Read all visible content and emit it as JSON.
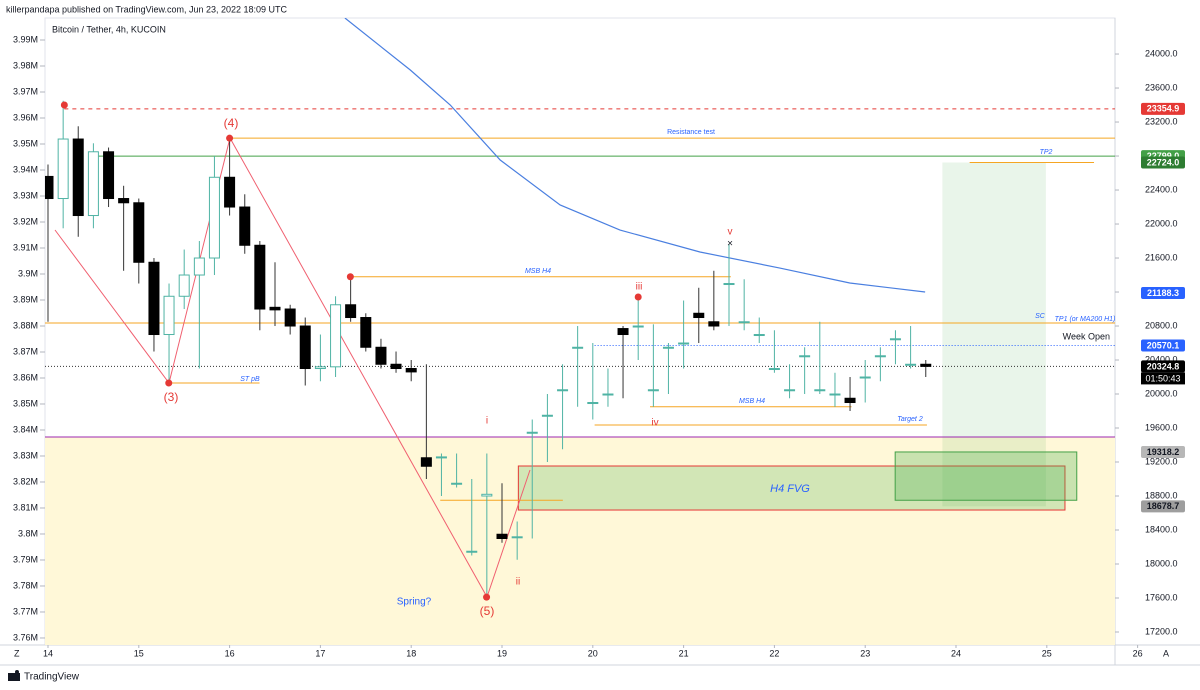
{
  "chart_data": {
    "type": "candlestick",
    "header": "killerpandapa published on TradingView.com, Jun 23, 2022 18:09 UTC",
    "title": "Bitcoin / Tether, 4h, KUCOIN",
    "footer": "TradingView",
    "countdown": "01:50:43",
    "scale_buttons": [
      "Z",
      "A"
    ],
    "bull_color": "#4fb3a4",
    "bear_color": "#000000",
    "x": [
      14,
      14.167,
      14.333,
      14.5,
      14.667,
      14.833,
      15,
      15.167,
      15.333,
      15.5,
      15.667,
      15.833,
      16,
      16.167,
      16.333,
      16.5,
      16.667,
      16.833,
      17,
      17.167,
      17.333,
      17.5,
      17.667,
      17.833,
      18,
      18.167,
      18.333,
      18.5,
      18.667,
      18.833,
      19,
      19.167,
      19.333,
      19.5,
      19.667,
      19.833,
      20,
      20.167,
      20.333,
      20.5,
      20.667,
      20.833,
      21,
      21.167,
      21.333,
      21.5,
      21.667,
      21.833,
      22,
      22.167,
      22.333,
      22.5,
      22.667,
      22.833,
      23,
      23.167,
      23.333,
      23.5,
      23.667
    ],
    "open": [
      22560,
      22300,
      23000,
      22100,
      22850,
      22300,
      22250,
      21550,
      20700,
      21150,
      21400,
      21600,
      22550,
      22200,
      21750,
      21020,
      21000,
      20800,
      20300,
      20320,
      21050,
      20900,
      20550,
      20350,
      20300,
      19250,
      19250,
      18950,
      18150,
      18800,
      18350,
      18320,
      19550,
      19750,
      20050,
      20550,
      19900,
      20000,
      20770,
      20800,
      20050,
      20550,
      20600,
      20950,
      20850,
      21300,
      20850,
      20700,
      20300,
      20050,
      20450,
      20050,
      20000,
      19950,
      20200,
      20450,
      20650,
      20350,
      20350
    ],
    "high": [
      22700,
      23450,
      23150,
      22950,
      22900,
      22450,
      22300,
      21600,
      21300,
      21700,
      21800,
      22800,
      23010,
      22350,
      21800,
      21550,
      21050,
      20900,
      20700,
      21150,
      21380,
      20950,
      20650,
      20500,
      20400,
      20350,
      19300,
      19300,
      19000,
      19300,
      18950,
      18500,
      19700,
      20000,
      20350,
      20800,
      20600,
      20300,
      20800,
      21150,
      20820,
      20600,
      21100,
      21250,
      21450,
      21765,
      21350,
      20900,
      20750,
      20350,
      20550,
      20850,
      20250,
      20200,
      20400,
      20550,
      20750,
      20800,
      20400
    ],
    "low": [
      20850,
      21950,
      21850,
      21950,
      22200,
      21450,
      21300,
      20500,
      20130,
      21000,
      20300,
      21400,
      22100,
      21650,
      20750,
      20800,
      20700,
      20100,
      20150,
      20200,
      20850,
      20500,
      20300,
      20250,
      20150,
      19000,
      18800,
      18900,
      18100,
      17620,
      18250,
      18050,
      18300,
      19200,
      19350,
      19850,
      19700,
      19850,
      19950,
      20400,
      19850,
      20000,
      20300,
      20600,
      20750,
      20800,
      20750,
      20600,
      20250,
      19950,
      20000,
      20000,
      19850,
      19800,
      19900,
      20150,
      20350,
      20300,
      20200
    ],
    "close": [
      22300,
      23000,
      22100,
      22850,
      22300,
      22250,
      21550,
      20700,
      21150,
      21400,
      21600,
      22550,
      22200,
      21750,
      21000,
      20990,
      20800,
      20300,
      20320,
      21050,
      20900,
      20550,
      20350,
      20300,
      20260,
      19150,
      19260,
      18950,
      18150,
      18820,
      18300,
      18320,
      19550,
      19750,
      20050,
      20550,
      19900,
      20000,
      20700,
      20800,
      20050,
      20550,
      20600,
      20900,
      20800,
      21300,
      20850,
      20700,
      20300,
      20050,
      20450,
      20050,
      20000,
      19900,
      20200,
      20450,
      20650,
      20350,
      20325
    ],
    "ma": {
      "color": "#4a7fe0",
      "x": [
        17.27,
        17.99,
        18.43,
        18.98,
        19.64,
        20.3,
        21.18,
        22.06,
        22.83,
        23.66
      ],
      "values": [
        24424,
        23812,
        23400,
        22753,
        22224,
        21929,
        21671,
        21482,
        21306,
        21200
      ]
    },
    "xlim": [
      13.967,
      25.751
    ],
    "xticks": [
      14,
      15,
      16,
      17,
      18,
      19,
      20,
      21,
      22,
      23,
      24,
      25,
      26
    ],
    "ylim": [
      17047,
      24424
    ],
    "yticks": [
      {
        "value": 17200,
        "label": "17200.0"
      },
      {
        "value": 17600,
        "label": "17600.0"
      },
      {
        "value": 18000,
        "label": "18000.0"
      },
      {
        "value": 18400,
        "label": "18400.0"
      },
      {
        "value": 18800,
        "label": "18800.0"
      },
      {
        "value": 19200,
        "label": "19200.0"
      },
      {
        "value": 19600,
        "label": "19600.0"
      },
      {
        "value": 20000,
        "label": "20000.0"
      },
      {
        "value": 20400,
        "label": "20400.0"
      },
      {
        "value": 20800,
        "label": "20800.0"
      },
      {
        "value": 21200,
        "label": "21200.0"
      },
      {
        "value": 21600,
        "label": "21600.0"
      },
      {
        "value": 22000,
        "label": "22000.0"
      },
      {
        "value": 22400,
        "label": "22400.0"
      },
      {
        "value": 22800,
        "label": "22800.0"
      },
      {
        "value": 23200,
        "label": "23200.0"
      },
      {
        "value": 23600,
        "label": "23600.0"
      },
      {
        "value": 24000,
        "label": "24000.0"
      }
    ],
    "y2lim": [
      3757300,
      3998460
    ],
    "y2ticks": [
      {
        "value": 3760000,
        "label": "3.76M"
      },
      {
        "value": 3770000,
        "label": "3.77M"
      },
      {
        "value": 3780000,
        "label": "3.78M"
      },
      {
        "value": 3790000,
        "label": "3.79M"
      },
      {
        "value": 3800000,
        "label": "3.8M"
      },
      {
        "value": 3810000,
        "label": "3.81M"
      },
      {
        "value": 3820000,
        "label": "3.82M"
      },
      {
        "value": 3830000,
        "label": "3.83M"
      },
      {
        "value": 3840000,
        "label": "3.84M"
      },
      {
        "value": 3850000,
        "label": "3.85M"
      },
      {
        "value": 3860000,
        "label": "3.86M"
      },
      {
        "value": 3870000,
        "label": "3.87M"
      },
      {
        "value": 3880000,
        "label": "3.88M"
      },
      {
        "value": 3890000,
        "label": "3.89M"
      },
      {
        "value": 3900000,
        "label": "3.9M"
      },
      {
        "value": 3910000,
        "label": "3.91M"
      },
      {
        "value": 3920000,
        "label": "3.92M"
      },
      {
        "value": 3930000,
        "label": "3.93M"
      },
      {
        "value": 3940000,
        "label": "3.94M"
      },
      {
        "value": 3950000,
        "label": "3.95M"
      },
      {
        "value": 3960000,
        "label": "3.96M"
      },
      {
        "value": 3970000,
        "label": "3.97M"
      },
      {
        "value": 3980000,
        "label": "3.98M"
      },
      {
        "value": 3990000,
        "label": "3.99M"
      }
    ],
    "price_labels": [
      {
        "value": 23354.9,
        "label": "23354.9",
        "bg": "#e53935",
        "fg": "#ffffff"
      },
      {
        "value": 22799,
        "label": "22799.0",
        "bg": "#43a047",
        "fg": "#ffffff"
      },
      {
        "value": 22724,
        "label": "22724.0",
        "bg": "#2e7d32",
        "fg": "#ffffff"
      },
      {
        "value": 21188.3,
        "label": "21188.3",
        "bg": "#2962ff",
        "fg": "#ffffff"
      },
      {
        "value": 20570.1,
        "label": "20570.1",
        "bg": "#2962ff",
        "fg": "#ffffff"
      },
      {
        "value": 20324.8,
        "label": "20324.8",
        "bg": "#000000",
        "fg": "#ffffff"
      },
      {
        "value": 19318.2,
        "label": "19318.2",
        "bg": "#b7b7b7",
        "fg": "#131722"
      },
      {
        "value": 18678.7,
        "label": "18678.7",
        "bg": "#9e9e9e",
        "fg": "#131722"
      }
    ],
    "boxes": [
      {
        "top": 19494,
        "bottom": 17047,
        "from": 13.967,
        "to": 25.751,
        "fill": "#fff8d8",
        "stroke": "none"
      },
      {
        "top": 22724,
        "bottom": 18678.7,
        "from": 23.85,
        "to": 24.99,
        "fill": "rgba(76,175,80,0.12)",
        "stroke": "none"
      },
      {
        "top": 19153,
        "bottom": 18635,
        "from": 19.18,
        "to": 25.2,
        "fill": "rgba(76,175,80,0.25)",
        "stroke": "#e53935"
      },
      {
        "top": 19318.2,
        "bottom": 18750,
        "from": 23.33,
        "to": 25.33,
        "fill": "rgba(76,175,80,0.3)",
        "stroke": "#43a047"
      }
    ],
    "levels": [
      {
        "value": 23354.9,
        "color": "#e53935",
        "dash": "4 4",
        "from": 14.18,
        "to": 25.751
      },
      {
        "value": 23010,
        "color": "#f5a623",
        "dash": "",
        "from": 16,
        "to": 25.751
      },
      {
        "value": 22799,
        "color": "#43a047",
        "dash": "",
        "from": 14.52,
        "to": 25.751
      },
      {
        "value": 22724,
        "color": "#f5a623",
        "dash": "",
        "from": 24.15,
        "to": 25.52
      },
      {
        "value": 21380,
        "color": "#f5a623",
        "dash": "",
        "from": 17.33,
        "to": 21.52
      },
      {
        "value": 20835,
        "color": "#f5a623",
        "dash": "",
        "from": 13.967,
        "to": 25.751
      },
      {
        "value": 20570.1,
        "color": "#2962ff",
        "dash": "1 2",
        "from": 20.02,
        "to": 25.751
      },
      {
        "value": 20324.8,
        "color": "#333333",
        "dash": "1 2",
        "from": 13.967,
        "to": 25.751
      },
      {
        "value": 20130,
        "color": "#f5a623",
        "dash": "",
        "from": 15.34,
        "to": 16.33
      },
      {
        "value": 19850,
        "color": "#f5a623",
        "dash": "",
        "from": 20.63,
        "to": 22.85
      },
      {
        "value": 19635,
        "color": "#f5a623",
        "dash": "",
        "from": 20.02,
        "to": 23.68
      },
      {
        "value": 19494,
        "color": "#9c27b0",
        "dash": "",
        "from": 13.967,
        "to": 25.751
      },
      {
        "value": 18750,
        "color": "#f5a623",
        "dash": "",
        "from": 18.32,
        "to": 19.67
      }
    ],
    "markers": [
      {
        "x": 14.18,
        "value": 23400
      },
      {
        "x": 16,
        "value": 23010
      },
      {
        "x": 15.33,
        "value": 20130
      },
      {
        "x": 17.33,
        "value": 21380
      },
      {
        "x": 20.5,
        "value": 21141
      },
      {
        "x": 18.83,
        "value": 17610
      }
    ],
    "annotations": [
      {
        "text": "Resistance test",
        "color": "#2962ff"
      },
      {
        "text": "TP2",
        "color": "#2962ff"
      },
      {
        "text": "MSB H4",
        "color": "#2962ff"
      },
      {
        "text": "ST pB",
        "color": "#2962ff"
      },
      {
        "text": "MSB H4",
        "color": "#2962ff"
      },
      {
        "text": "Target 2",
        "color": "#2962ff"
      },
      {
        "text": "SC",
        "color": "#2962ff"
      },
      {
        "text": "TP1 (or MA200 H1)",
        "color": "#2962ff"
      },
      {
        "text": "Week Open",
        "color": "#131722"
      },
      {
        "text": "H4 FVG",
        "color": "#2962ff"
      },
      {
        "text": "Spring?",
        "color": "#2962ff"
      },
      {
        "text": "(3)",
        "color": "#e53935"
      },
      {
        "text": "(4)",
        "color": "#e53935"
      },
      {
        "text": "(5)",
        "color": "#e53935"
      },
      {
        "text": "i",
        "color": "#e53935"
      },
      {
        "text": "ii",
        "color": "#e53935"
      },
      {
        "text": "iii",
        "color": "#e53935"
      },
      {
        "text": "iv",
        "color": "#e53935"
      },
      {
        "text": "v",
        "color": "#e53935"
      }
    ]
  }
}
